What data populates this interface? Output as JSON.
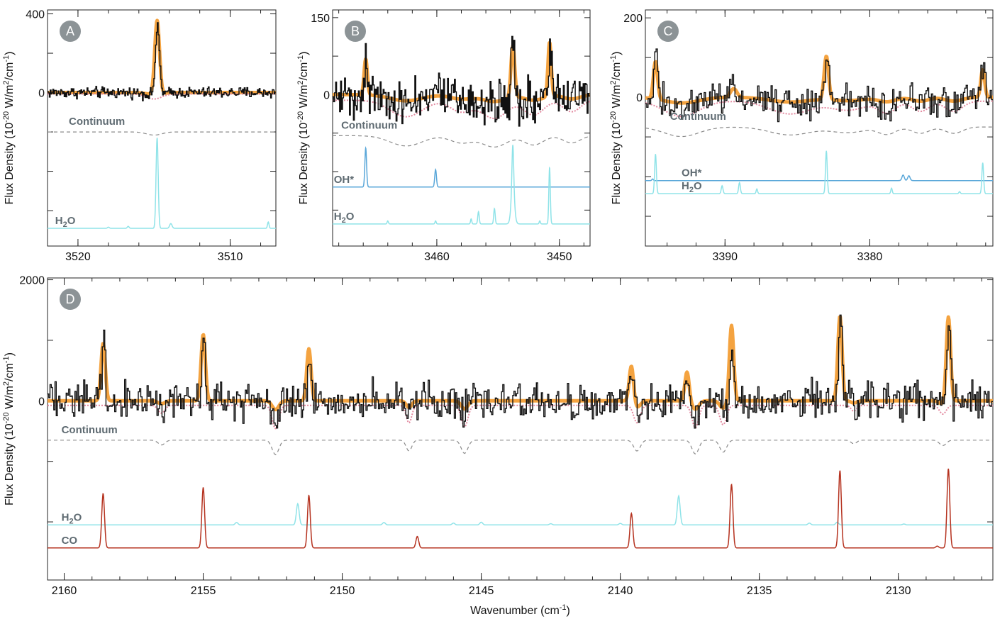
{
  "figure": {
    "y_axis_title": "Flux Density (10",
    "y_axis_exp": "-20",
    "y_axis_units": " W/m",
    "y_axis_sq": "2",
    "y_axis_per": "/cm",
    "y_axis_inv": "-1",
    "y_axis_close": ")",
    "x_axis_title_main": "Wavenumber (cm",
    "x_axis_title_exp": "-1",
    "x_axis_title_close": ")"
  },
  "colors": {
    "observed": "#111111",
    "model": "#f4a340",
    "continuum_fit": "#e38aa0",
    "continuum": "#8a8a8a",
    "h2o": "#8fe3e8",
    "oh": "#5aa7d9",
    "co": "#b5321f",
    "badge": "#8c9396",
    "label": "#5f6b72"
  },
  "chart_data": [
    {
      "panel": "A",
      "type": "line",
      "xlabel": "",
      "ylabel": "Flux Density (10^-20 W/m^2/cm^-1)",
      "xlim": [
        3522,
        3507
      ],
      "ylim": [
        -780,
        420
      ],
      "yticks": [
        {
          "v": 400,
          "label": "400"
        },
        {
          "v": 0,
          "label": "0"
        }
      ],
      "xticks": [
        {
          "v": 3520,
          "label": "3520"
        },
        {
          "v": 3510,
          "label": "3510"
        }
      ],
      "noise_amplitude": 14,
      "observed_lines": [
        {
          "x": 3514.8,
          "amp": 335,
          "w": 0.14
        }
      ],
      "model_lines": [
        {
          "x": 3514.8,
          "amp": 375,
          "w": 0.14
        }
      ],
      "continuum_dips": [
        {
          "x": 3515.0,
          "d": 16,
          "w": 0.5
        }
      ],
      "components": [
        {
          "name": "Continuum",
          "label": "Continuum",
          "style": "continuum",
          "baseline": -200,
          "label_x": 3520.6
        },
        {
          "name": "H2O",
          "label": "H",
          "sub": "2",
          "label_tail": "O",
          "style": "h2o",
          "baseline": -690,
          "label_x": 3521.5,
          "lines": [
            {
              "x": 3514.8,
              "amp": 460,
              "w": 0.07
            },
            {
              "x": 3513.9,
              "amp": 24,
              "w": 0.08
            },
            {
              "x": 3516.7,
              "amp": 10,
              "w": 0.06
            },
            {
              "x": 3507.5,
              "amp": 32,
              "w": 0.05
            },
            {
              "x": 3518.0,
              "amp": 6,
              "w": 0.06
            }
          ]
        }
      ]
    },
    {
      "panel": "B",
      "type": "line",
      "xlabel": "",
      "ylabel": "Flux Density (10^-20 W/m^2/cm^-1)",
      "xlim": [
        3468.5,
        3447.5
      ],
      "ylim": [
        -295,
        165
      ],
      "yticks": [
        {
          "v": 150,
          "label": "150"
        },
        {
          "v": 0,
          "label": "0"
        }
      ],
      "xticks": [
        {
          "v": 3460,
          "label": "3460"
        },
        {
          "v": 3450,
          "label": "3450"
        }
      ],
      "noise_amplitude": 22,
      "observed_lines": [
        {
          "x": 3465.8,
          "amp": 78,
          "w": 0.12
        },
        {
          "x": 3453.8,
          "amp": 110,
          "w": 0.14
        },
        {
          "x": 3450.8,
          "amp": 95,
          "w": 0.12
        }
      ],
      "model_lines": [
        {
          "x": 3465.8,
          "amp": 70,
          "w": 0.12
        },
        {
          "x": 3453.8,
          "amp": 100,
          "w": 0.14
        },
        {
          "x": 3450.8,
          "amp": 105,
          "w": 0.12
        }
      ],
      "continuum_dips": [
        {
          "x": 3462.5,
          "d": 20,
          "w": 1.3
        },
        {
          "x": 3458.0,
          "d": 14,
          "w": 0.9
        },
        {
          "x": 3455.3,
          "d": 22,
          "w": 1.0
        },
        {
          "x": 3452.1,
          "d": 18,
          "w": 0.8
        },
        {
          "x": 3449.0,
          "d": 14,
          "w": 0.7
        }
      ],
      "components": [
        {
          "name": "Continuum",
          "label": "Continuum",
          "style": "continuum",
          "baseline": -80,
          "label_x": 3467.8
        },
        {
          "name": "OH*",
          "label": "OH*",
          "style": "oh",
          "baseline": -180,
          "label_x": 3468.4,
          "lines": [
            {
              "x": 3465.8,
              "amp": 76,
              "w": 0.07
            },
            {
              "x": 3460.1,
              "amp": 34,
              "w": 0.07
            }
          ]
        },
        {
          "name": "H2O",
          "label": "H",
          "sub": "2",
          "label_tail": "O",
          "style": "h2o",
          "baseline": -252,
          "label_x": 3468.4,
          "lines": [
            {
              "x": 3453.8,
              "amp": 88,
              "w": 0.07
            },
            {
              "x": 3453.8,
              "amp": 66,
              "w": 0.14
            },
            {
              "x": 3450.8,
              "amp": 110,
              "w": 0.06
            },
            {
              "x": 3455.3,
              "amp": 30,
              "w": 0.06
            },
            {
              "x": 3456.6,
              "amp": 24,
              "w": 0.06
            },
            {
              "x": 3457.2,
              "amp": 10,
              "w": 0.05
            },
            {
              "x": 3460.1,
              "amp": 6,
              "w": 0.05
            },
            {
              "x": 3464.0,
              "amp": 6,
              "w": 0.05
            },
            {
              "x": 3451.6,
              "amp": 6,
              "w": 0.05
            }
          ]
        }
      ]
    },
    {
      "panel": "C",
      "type": "line",
      "xlabel": "",
      "ylabel": "Flux Density (10^-20 W/m^2/cm^-1)",
      "xlim": [
        3395.5,
        3371.5
      ],
      "ylim": [
        -375,
        220
      ],
      "yticks": [
        {
          "v": 200,
          "label": "200"
        },
        {
          "v": 0,
          "label": "0"
        }
      ],
      "xticks": [
        {
          "v": 3390,
          "label": "3390"
        },
        {
          "v": 3380,
          "label": "3380"
        }
      ],
      "noise_amplitude": 20,
      "observed_lines": [
        {
          "x": 3394.8,
          "amp": 100,
          "w": 0.13
        },
        {
          "x": 3383.0,
          "amp": 120,
          "w": 0.14
        },
        {
          "x": 3372.2,
          "amp": 80,
          "w": 0.12
        },
        {
          "x": 3389.5,
          "amp": 18,
          "w": 0.2
        }
      ],
      "model_lines": [
        {
          "x": 3394.8,
          "amp": 95,
          "w": 0.13
        },
        {
          "x": 3383.0,
          "amp": 110,
          "w": 0.14
        },
        {
          "x": 3372.2,
          "amp": 70,
          "w": 0.12
        },
        {
          "x": 3389.4,
          "amp": 22,
          "w": 0.2
        }
      ],
      "continuum_dips": [
        {
          "x": 3393.0,
          "d": 24,
          "w": 1.2
        },
        {
          "x": 3385.5,
          "d": 20,
          "w": 1.4
        },
        {
          "x": 3381.5,
          "d": 14,
          "w": 1.2
        },
        {
          "x": 3378.8,
          "d": 18,
          "w": 0.6
        },
        {
          "x": 3376.5,
          "d": 16,
          "w": 0.6
        },
        {
          "x": 3374.2,
          "d": 16,
          "w": 0.6
        }
      ],
      "components": [
        {
          "name": "Continuum",
          "label": "Continuum",
          "style": "continuum",
          "baseline": -75,
          "label_x": 3393.8
        },
        {
          "name": "OH*",
          "label": "OH*",
          "style": "oh",
          "baseline": -210,
          "label_x": 3393.0,
          "lines": [
            {
              "x": 3377.7,
              "amp": 14,
              "w": 0.08
            },
            {
              "x": 3377.3,
              "amp": 12,
              "w": 0.08
            },
            {
              "x": 3395.0,
              "amp": 4,
              "w": 0.05
            }
          ]
        },
        {
          "name": "H2O",
          "label": "H",
          "sub": "2",
          "label_tail": "O",
          "style": "h2o",
          "baseline": -243,
          "label_x": 3393.0,
          "lines": [
            {
              "x": 3394.8,
              "amp": 100,
              "w": 0.06
            },
            {
              "x": 3383.0,
              "amp": 108,
              "w": 0.06
            },
            {
              "x": 3372.2,
              "amp": 78,
              "w": 0.06
            },
            {
              "x": 3390.2,
              "amp": 20,
              "w": 0.06
            },
            {
              "x": 3389.0,
              "amp": 28,
              "w": 0.06
            },
            {
              "x": 3387.8,
              "amp": 12,
              "w": 0.05
            },
            {
              "x": 3378.5,
              "amp": 14,
              "w": 0.05
            },
            {
              "x": 3373.8,
              "amp": 5,
              "w": 0.05
            }
          ]
        }
      ]
    },
    {
      "panel": "D",
      "type": "line",
      "xlabel": "Wavenumber (cm^-1)",
      "ylabel": "Flux Density (10^-20 W/m^2/cm^-1)",
      "xlim": [
        2160.6,
        2126.6
      ],
      "ylim": [
        -2960,
        2030
      ],
      "yticks": [
        {
          "v": 2000,
          "label": "2000"
        },
        {
          "v": 0,
          "label": "0"
        }
      ],
      "xticks": [
        {
          "v": 2160,
          "label": "2160"
        },
        {
          "v": 2155,
          "label": "2155"
        },
        {
          "v": 2150,
          "label": "2150"
        },
        {
          "v": 2145,
          "label": "2145"
        },
        {
          "v": 2140,
          "label": "2140"
        },
        {
          "v": 2135,
          "label": "2135"
        },
        {
          "v": 2130,
          "label": "2130"
        }
      ],
      "noise_amplitude": 150,
      "observed_lines": [
        {
          "x": 2158.6,
          "amp": 1050,
          "w": 0.06
        },
        {
          "x": 2155.0,
          "amp": 1230,
          "w": 0.06
        },
        {
          "x": 2151.2,
          "amp": 650,
          "w": 0.06
        },
        {
          "x": 2139.6,
          "amp": 450,
          "w": 0.06
        },
        {
          "x": 2137.6,
          "amp": 350,
          "w": 0.07
        },
        {
          "x": 2136.0,
          "amp": 1100,
          "w": 0.06
        },
        {
          "x": 2132.1,
          "amp": 1430,
          "w": 0.06
        },
        {
          "x": 2128.2,
          "amp": 1420,
          "w": 0.06
        }
      ],
      "model_lines": [
        {
          "x": 2158.6,
          "amp": 950,
          "w": 0.07
        },
        {
          "x": 2155.0,
          "amp": 1100,
          "w": 0.07
        },
        {
          "x": 2151.2,
          "amp": 860,
          "w": 0.07
        },
        {
          "x": 2139.6,
          "amp": 600,
          "w": 0.07
        },
        {
          "x": 2137.6,
          "amp": 480,
          "w": 0.07
        },
        {
          "x": 2136.0,
          "amp": 1250,
          "w": 0.07
        },
        {
          "x": 2132.1,
          "amp": 1400,
          "w": 0.07
        },
        {
          "x": 2128.2,
          "amp": 1400,
          "w": 0.07
        }
      ],
      "continuum_dips": [
        {
          "x": 2156.5,
          "d": 80,
          "w": 0.12
        },
        {
          "x": 2152.4,
          "d": 240,
          "w": 0.12
        },
        {
          "x": 2147.6,
          "d": 180,
          "w": 0.1
        },
        {
          "x": 2145.6,
          "d": 220,
          "w": 0.12
        },
        {
          "x": 2139.4,
          "d": 180,
          "w": 0.12
        },
        {
          "x": 2137.3,
          "d": 230,
          "w": 0.12
        },
        {
          "x": 2136.3,
          "d": 200,
          "w": 0.12
        },
        {
          "x": 2131.6,
          "d": 60,
          "w": 0.1
        },
        {
          "x": 2128.4,
          "d": 90,
          "w": 0.12
        }
      ],
      "components": [
        {
          "name": "Continuum",
          "label": "Continuum",
          "style": "continuum",
          "baseline": -650,
          "label_x": 2160.1
        },
        {
          "name": "H2O",
          "label": "H",
          "sub": "2",
          "label_tail": "O",
          "style": "h2o",
          "baseline": -2050,
          "label_x": 2160.1,
          "lines": [
            {
              "x": 2151.6,
              "amp": 350,
              "w": 0.05
            },
            {
              "x": 2137.9,
              "amp": 480,
              "w": 0.05
            },
            {
              "x": 2153.8,
              "amp": 40,
              "w": 0.05
            },
            {
              "x": 2148.5,
              "amp": 40,
              "w": 0.05
            },
            {
              "x": 2146.0,
              "amp": 30,
              "w": 0.05
            },
            {
              "x": 2145.0,
              "amp": 45,
              "w": 0.05
            },
            {
              "x": 2142.5,
              "amp": 20,
              "w": 0.05
            },
            {
              "x": 2140.0,
              "amp": 25,
              "w": 0.05
            },
            {
              "x": 2133.2,
              "amp": 30,
              "w": 0.05
            },
            {
              "x": 2132.2,
              "amp": 45,
              "w": 0.05
            },
            {
              "x": 2129.8,
              "amp": 15,
              "w": 0.05
            }
          ]
        },
        {
          "name": "CO",
          "label": "CO",
          "style": "co",
          "baseline": -2430,
          "label_x": 2160.1,
          "lines": [
            {
              "x": 2158.6,
              "amp": 900,
              "w": 0.05
            },
            {
              "x": 2155.0,
              "amp": 1000,
              "w": 0.05
            },
            {
              "x": 2151.2,
              "amp": 870,
              "w": 0.05
            },
            {
              "x": 2147.3,
              "amp": 190,
              "w": 0.05
            },
            {
              "x": 2139.6,
              "amp": 570,
              "w": 0.05
            },
            {
              "x": 2136.0,
              "amp": 1050,
              "w": 0.05
            },
            {
              "x": 2132.1,
              "amp": 1280,
              "w": 0.05
            },
            {
              "x": 2128.2,
              "amp": 1310,
              "w": 0.05
            },
            {
              "x": 2128.6,
              "amp": 30,
              "w": 0.05
            }
          ]
        }
      ]
    }
  ]
}
